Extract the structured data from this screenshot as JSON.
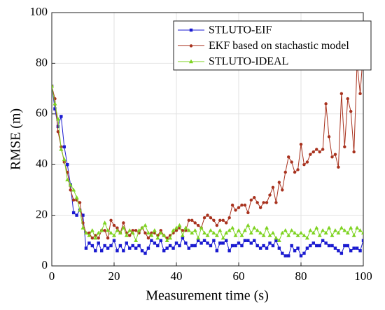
{
  "chart_data": {
    "type": "line",
    "xlabel": "Measurement time (s)",
    "ylabel": "RMSE (m)",
    "x": [
      0,
      1,
      2,
      3,
      4,
      5,
      6,
      7,
      8,
      9,
      10,
      11,
      12,
      13,
      14,
      15,
      16,
      17,
      18,
      19,
      20,
      21,
      22,
      23,
      24,
      25,
      26,
      27,
      28,
      29,
      30,
      31,
      32,
      33,
      34,
      35,
      36,
      37,
      38,
      39,
      40,
      41,
      42,
      43,
      44,
      45,
      46,
      47,
      48,
      49,
      50,
      51,
      52,
      53,
      54,
      55,
      56,
      57,
      58,
      59,
      60,
      61,
      62,
      63,
      64,
      65,
      66,
      67,
      68,
      69,
      70,
      71,
      72,
      73,
      74,
      75,
      76,
      77,
      78,
      79,
      80,
      81,
      82,
      83,
      84,
      85,
      86,
      87,
      88,
      89,
      90,
      91,
      92,
      93,
      94,
      95,
      96,
      97,
      98,
      99,
      100
    ],
    "series": [
      {
        "name": "STLUTO-EIF",
        "color": "#1a1ad0",
        "marker": "square",
        "values": [
          71,
          62,
          55,
          59,
          47,
          40,
          32,
          21,
          20,
          22,
          20,
          7,
          9,
          8,
          6,
          9,
          6,
          8,
          7,
          8,
          10,
          6,
          8,
          6,
          9,
          7,
          8,
          7,
          8,
          6,
          5,
          7,
          10,
          9,
          8,
          10,
          6,
          7,
          8,
          7,
          9,
          8,
          11,
          9,
          7,
          8,
          8,
          10,
          9,
          10,
          9,
          8,
          10,
          6,
          9,
          9,
          10,
          6,
          8,
          8,
          9,
          8,
          10,
          10,
          9,
          10,
          8,
          7,
          8,
          7,
          9,
          8,
          10,
          7,
          5,
          4,
          4,
          8,
          6,
          7,
          4,
          5,
          7,
          8,
          9,
          8,
          8,
          10,
          9,
          8,
          8,
          7,
          6,
          5,
          8,
          8,
          6,
          7,
          7,
          6,
          10
        ]
      },
      {
        "name": "EKF based on stachastic model",
        "color": "#a8321e",
        "marker": "circle",
        "values": [
          71,
          66,
          53,
          47,
          41,
          37,
          30,
          26,
          26,
          25,
          17,
          13,
          13,
          11,
          12,
          11,
          14,
          14,
          11,
          18,
          16,
          15,
          13,
          17,
          13,
          12,
          14,
          14,
          13,
          15,
          13,
          11,
          13,
          13,
          12,
          14,
          12,
          11,
          12,
          13,
          14,
          15,
          14,
          14,
          18,
          18,
          17,
          16,
          15,
          19,
          20,
          19,
          18,
          16,
          18,
          18,
          17,
          19,
          24,
          22,
          23,
          24,
          24,
          21,
          26,
          27,
          25,
          23,
          25,
          25,
          28,
          31,
          25,
          33,
          30,
          37,
          43,
          41,
          37,
          38,
          48,
          40,
          41,
          44,
          45,
          46,
          45,
          46,
          64,
          51,
          43,
          44,
          39,
          68,
          47,
          66,
          61,
          45,
          80,
          68,
          85
        ]
      },
      {
        "name": "STLUTO-IDEAL",
        "color": "#7ed321",
        "marker": "triangle",
        "values": [
          71,
          64,
          58,
          46,
          42,
          34,
          32,
          30,
          27,
          22,
          15,
          13,
          12,
          14,
          11,
          13,
          14,
          17,
          14,
          13,
          12,
          14,
          13,
          15,
          12,
          14,
          13,
          10,
          14,
          15,
          16,
          13,
          12,
          14,
          11,
          13,
          12,
          10,
          11,
          14,
          15,
          16,
          12,
          15,
          14,
          13,
          14,
          11,
          15,
          13,
          12,
          14,
          13,
          12,
          14,
          11,
          13,
          14,
          15,
          12,
          14,
          12,
          14,
          16,
          13,
          15,
          14,
          13,
          12,
          15,
          12,
          13,
          11,
          10,
          13,
          14,
          12,
          14,
          13,
          12,
          13,
          12,
          11,
          14,
          13,
          15,
          12,
          14,
          13,
          15,
          12,
          14,
          13,
          15,
          14,
          13,
          15,
          12,
          15,
          14,
          13
        ]
      }
    ],
    "xlim": [
      0,
      100
    ],
    "xticks": [
      0,
      20,
      40,
      60,
      80,
      100
    ],
    "ylim": [
      0,
      100
    ],
    "yticks": [
      0,
      20,
      40,
      60,
      80,
      100
    ],
    "grid": true,
    "legend": "upper right"
  }
}
